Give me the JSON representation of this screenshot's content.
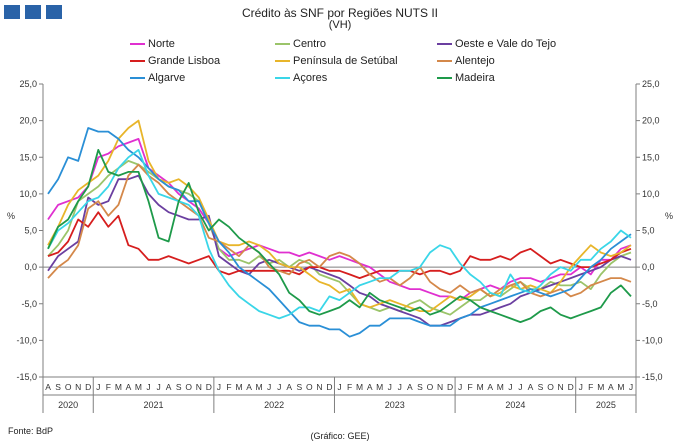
{
  "header": {
    "title": "Crédito às SNF por Regiões NUTS II",
    "subtitle": "(VH)"
  },
  "footer": {
    "source": "Fonte: BdP",
    "credit": "(Gráfico: GEE)"
  },
  "colors": {
    "logo": "#2a63a8",
    "axis": "#7f7f7f",
    "grid": "#d9d9d9"
  },
  "chart_data": {
    "type": "line",
    "title": "Crédito às SNF por Regiões NUTS II",
    "subtitle": "(VH)",
    "ylabel_left": "%",
    "ylabel_right": "%",
    "ylim": [
      -15,
      25
    ],
    "yticks": [
      "-15,0",
      "-10,0",
      "-5,0",
      "0,0",
      "5,0",
      "10,0",
      "15,0",
      "20,0",
      "25,0"
    ],
    "grid": false,
    "legend_position": "top",
    "x": [
      "A",
      "S",
      "O",
      "N",
      "D",
      "J",
      "F",
      "M",
      "A",
      "M",
      "J",
      "J",
      "A",
      "S",
      "O",
      "N",
      "D",
      "J",
      "F",
      "M",
      "A",
      "M",
      "J",
      "J",
      "A",
      "S",
      "O",
      "N",
      "D",
      "J",
      "F",
      "M",
      "A",
      "M",
      "J",
      "J",
      "A",
      "S",
      "O",
      "N",
      "D",
      "J",
      "F",
      "M",
      "A",
      "M",
      "J",
      "J",
      "A",
      "S",
      "O",
      "N",
      "D",
      "J",
      "F",
      "M",
      "A",
      "M",
      "J"
    ],
    "year_labels": [
      {
        "label": "2020",
        "months": 5
      },
      {
        "label": "2021",
        "months": 12
      },
      {
        "label": "2022",
        "months": 12
      },
      {
        "label": "2023",
        "months": 12
      },
      {
        "label": "2024",
        "months": 12
      },
      {
        "label": "2025",
        "months": 6
      }
    ],
    "series": [
      {
        "name": "Norte",
        "color": "#e030d0",
        "values": [
          6.5,
          8.5,
          9.0,
          9.5,
          11.0,
          15.0,
          15.5,
          16.5,
          17.0,
          17.5,
          13.5,
          12.5,
          11.5,
          10.0,
          9.0,
          8.0,
          6.0,
          2.5,
          1.5,
          2.0,
          2.5,
          3.0,
          2.5,
          2.0,
          2.0,
          1.5,
          2.0,
          1.5,
          1.0,
          1.5,
          1.0,
          0.5,
          0.0,
          -1.0,
          -2.0,
          -2.5,
          -3.0,
          -3.0,
          -3.5,
          -4.0,
          -4.0,
          -4.5,
          -3.5,
          -3.0,
          -2.5,
          -3.0,
          -2.0,
          -1.5,
          -1.5,
          -2.0,
          -1.5,
          -1.0,
          -1.0,
          0.0,
          -1.0,
          1.0,
          1.0,
          2.5,
          3.0
        ]
      },
      {
        "name": "Centro",
        "color": "#9bc46a",
        "values": [
          1.5,
          3.0,
          5.0,
          9.0,
          10.0,
          11.0,
          12.5,
          13.5,
          14.5,
          14.0,
          13.0,
          12.0,
          11.0,
          10.5,
          10.0,
          9.0,
          6.0,
          2.5,
          1.0,
          1.0,
          0.5,
          1.5,
          0.5,
          1.0,
          0.0,
          1.0,
          0.5,
          -1.0,
          -1.5,
          -2.0,
          -3.5,
          -5.0,
          -5.5,
          -6.0,
          -5.5,
          -6.0,
          -5.0,
          -4.5,
          -5.5,
          -6.0,
          -6.5,
          -5.5,
          -4.5,
          -4.5,
          -3.5,
          -4.0,
          -3.0,
          -2.0,
          -3.0,
          -3.0,
          -2.0,
          -2.5,
          -2.5,
          -2.0,
          -3.0,
          -1.0,
          0.5,
          1.5,
          2.0
        ]
      },
      {
        "name": "Oeste e Vale do Tejo",
        "color": "#6b3fa0",
        "values": [
          -0.5,
          1.5,
          2.5,
          3.5,
          9.5,
          8.5,
          9.0,
          12.0,
          12.0,
          12.5,
          10.0,
          8.5,
          7.5,
          7.0,
          6.5,
          6.5,
          7.0,
          1.5,
          0.5,
          -0.5,
          -1.0,
          0.5,
          1.0,
          0.5,
          0.0,
          -0.5,
          0.0,
          -0.5,
          -1.0,
          -1.5,
          -2.5,
          -3.5,
          -4.0,
          -5.0,
          -5.5,
          -6.0,
          -6.5,
          -7.0,
          -8.0,
          -8.0,
          -7.5,
          -7.0,
          -6.5,
          -6.5,
          -6.0,
          -5.5,
          -5.0,
          -4.0,
          -3.5,
          -3.0,
          -2.5,
          -2.0,
          -1.5,
          -1.0,
          -0.5,
          0.0,
          1.0,
          1.5,
          1.0
        ]
      },
      {
        "name": "Grande Lisboa",
        "color": "#d61e1e",
        "values": [
          1.5,
          2.0,
          3.5,
          6.5,
          5.5,
          7.5,
          5.5,
          7.0,
          3.0,
          2.5,
          1.0,
          1.0,
          1.5,
          1.0,
          0.5,
          1.0,
          1.5,
          -0.5,
          -1.0,
          -0.5,
          -0.5,
          -0.5,
          -0.5,
          -0.5,
          -0.5,
          -1.0,
          0.0,
          0.0,
          -0.5,
          -0.5,
          -1.0,
          -1.5,
          -1.0,
          -0.5,
          -0.5,
          -0.5,
          -0.5,
          -1.0,
          -0.5,
          -0.5,
          -1.0,
          -0.5,
          1.5,
          1.0,
          1.0,
          1.5,
          1.0,
          2.0,
          2.5,
          1.5,
          0.5,
          1.0,
          0.5,
          0.0,
          0.0,
          0.5,
          1.0,
          2.0,
          2.5
        ]
      },
      {
        "name": "Península de Setúbal",
        "color": "#e8b52a",
        "values": [
          3.0,
          5.5,
          8.5,
          10.5,
          11.5,
          12.5,
          14.5,
          17.5,
          19.0,
          20.0,
          14.5,
          12.0,
          11.5,
          12.0,
          11.0,
          9.5,
          6.5,
          3.5,
          3.0,
          3.0,
          3.5,
          3.0,
          2.0,
          0.5,
          0.0,
          0.0,
          -1.0,
          -2.0,
          -2.5,
          -3.5,
          -3.0,
          -5.0,
          -5.5,
          -5.0,
          -4.5,
          -5.0,
          -5.5,
          -6.0,
          -6.0,
          -5.0,
          -4.0,
          -4.5,
          -4.0,
          -3.0,
          -4.0,
          -3.5,
          -2.5,
          -3.0,
          -2.5,
          -3.0,
          -3.5,
          -2.0,
          0.0,
          1.5,
          3.0,
          2.0,
          1.5,
          2.0,
          3.0
        ]
      },
      {
        "name": "Alentejo",
        "color": "#d4884a",
        "values": [
          -1.5,
          0.0,
          1.0,
          3.0,
          8.0,
          9.0,
          7.0,
          8.5,
          12.5,
          14.0,
          12.5,
          11.5,
          10.0,
          9.0,
          8.0,
          7.0,
          4.0,
          3.5,
          2.5,
          1.5,
          3.0,
          2.0,
          0.0,
          -0.5,
          -1.0,
          0.5,
          1.0,
          0.0,
          1.5,
          2.0,
          1.5,
          0.5,
          -1.0,
          -2.0,
          -1.5,
          -2.5,
          -1.5,
          0.0,
          -2.0,
          -3.0,
          -3.5,
          -2.5,
          -3.5,
          -3.0,
          -4.0,
          -3.0,
          -2.5,
          -2.0,
          -3.5,
          -4.0,
          -3.5,
          -3.0,
          -4.0,
          -3.5,
          -2.5,
          -2.0,
          -1.5,
          -1.5,
          -2.0
        ]
      },
      {
        "name": "Algarve",
        "color": "#2a8fd6",
        "values": [
          10.0,
          12.0,
          15.0,
          14.5,
          19.0,
          18.5,
          18.5,
          17.5,
          16.0,
          15.0,
          13.5,
          12.0,
          11.0,
          10.5,
          9.0,
          9.0,
          6.0,
          3.5,
          2.0,
          0.0,
          -1.0,
          -2.0,
          -3.0,
          -4.5,
          -6.0,
          -7.5,
          -8.0,
          -8.0,
          -8.5,
          -8.5,
          -9.5,
          -9.0,
          -8.0,
          -8.0,
          -7.0,
          -7.0,
          -7.0,
          -7.5,
          -8.0,
          -8.0,
          -8.0,
          -7.0,
          -6.5,
          -5.5,
          -5.0,
          -4.5,
          -4.0,
          -3.5,
          -3.0,
          -3.5,
          -4.0,
          -3.5,
          -3.0,
          -1.5,
          0.0,
          1.0,
          2.5,
          3.5,
          4.5
        ]
      },
      {
        "name": "Açores",
        "color": "#3ad6e8",
        "values": [
          2.5,
          5.0,
          6.0,
          7.5,
          9.0,
          9.5,
          11.0,
          13.5,
          15.0,
          16.0,
          12.5,
          10.0,
          9.5,
          9.0,
          8.5,
          7.0,
          2.5,
          -0.5,
          -2.5,
          -4.0,
          -5.0,
          -6.0,
          -6.5,
          -7.0,
          -6.5,
          -5.5,
          -5.5,
          -6.0,
          -4.0,
          -4.5,
          -3.5,
          -2.5,
          -2.0,
          -1.5,
          -1.5,
          -0.5,
          -0.5,
          0.0,
          2.0,
          3.0,
          2.5,
          0.5,
          -1.0,
          -2.0,
          -3.5,
          -4.0,
          -1.0,
          -3.0,
          -3.5,
          -2.5,
          -1.0,
          0.0,
          -0.5,
          1.0,
          1.0,
          2.5,
          3.5,
          5.0,
          4.0
        ]
      },
      {
        "name": "Madeira",
        "color": "#1e9a4a",
        "values": [
          2.5,
          5.5,
          6.5,
          9.0,
          11.0,
          16.0,
          13.0,
          12.5,
          13.0,
          13.0,
          9.0,
          4.0,
          3.5,
          9.0,
          11.5,
          7.5,
          5.0,
          6.5,
          5.5,
          4.0,
          3.0,
          2.0,
          0.5,
          -1.0,
          -3.5,
          -4.5,
          -6.0,
          -6.5,
          -6.0,
          -5.5,
          -4.5,
          -5.5,
          -3.5,
          -4.5,
          -5.0,
          -5.5,
          -6.0,
          -5.5,
          -6.5,
          -6.0,
          -5.0,
          -4.0,
          -4.5,
          -5.5,
          -6.0,
          -6.5,
          -7.0,
          -7.5,
          -7.0,
          -6.0,
          -5.5,
          -6.5,
          -7.0,
          -6.5,
          -6.0,
          -5.5,
          -3.5,
          -2.5,
          -4.0
        ]
      }
    ]
  }
}
